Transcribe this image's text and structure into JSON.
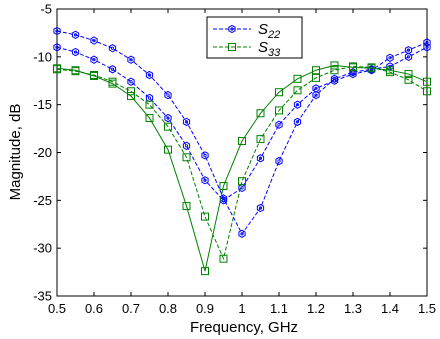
{
  "chart_data": {
    "type": "line",
    "xlabel": "Frequency, GHz",
    "ylabel": "Magnitude, dB",
    "xlim": [
      0.5,
      1.5
    ],
    "ylim": [
      -35,
      -5
    ],
    "xticks": [
      0.5,
      0.6,
      0.7,
      0.8,
      0.9,
      1.0,
      1.1,
      1.2,
      1.3,
      1.4,
      1.5
    ],
    "xtick_labels": [
      "0.5",
      "0.6",
      "0.7",
      "0.8",
      "0.9",
      "1",
      "1.1",
      "1.2",
      "1.3",
      "1.4",
      "1.5"
    ],
    "yticks": [
      -35,
      -30,
      -25,
      -20,
      -15,
      -10,
      -5
    ],
    "ytick_labels": [
      "-35",
      "-30",
      "-25",
      "-20",
      "-15",
      "-10",
      "-5"
    ],
    "grid": false,
    "legend_position": "top-center",
    "series": [
      {
        "name": "S22",
        "sub": "22",
        "color": "#0000ff",
        "dash": true,
        "marker": "hexagon",
        "x": [
          0.5,
          0.55,
          0.6,
          0.65,
          0.7,
          0.75,
          0.8,
          0.85,
          0.9,
          0.95,
          1.0,
          1.05,
          1.1,
          1.15,
          1.2,
          1.25,
          1.3,
          1.35,
          1.4,
          1.45,
          1.5
        ],
        "y": [
          -7.3,
          -7.7,
          -8.3,
          -9.1,
          -10.3,
          -11.9,
          -14.0,
          -16.8,
          -20.3,
          -24.8,
          -28.5,
          -25.8,
          -20.9,
          -16.8,
          -14.0,
          -12.3,
          -11.6,
          -11.3,
          -11.0,
          -10.0,
          -9.0
        ]
      },
      {
        "name": "S22",
        "sub": "22",
        "color": "#0000ff",
        "dash": true,
        "marker": "hexagon",
        "x": [
          0.5,
          0.55,
          0.6,
          0.65,
          0.7,
          0.75,
          0.8,
          0.85,
          0.9,
          0.95,
          1.0,
          1.05,
          1.1,
          1.15,
          1.2,
          1.25,
          1.3,
          1.35,
          1.4,
          1.45,
          1.5
        ],
        "y": [
          -9.0,
          -9.5,
          -10.3,
          -11.3,
          -12.6,
          -14.3,
          -16.4,
          -19.3,
          -22.9,
          -25.0,
          -23.7,
          -20.6,
          -17.1,
          -15.0,
          -13.3,
          -12.5,
          -11.8,
          -11.4,
          -10.1,
          -9.3,
          -8.5
        ]
      },
      {
        "name": "S33",
        "sub": "33",
        "color": "#008000",
        "dash": true,
        "marker": "square",
        "x": [
          0.5,
          0.55,
          0.6,
          0.65,
          0.7,
          0.75,
          0.8,
          0.85,
          0.9,
          0.95,
          1.0,
          1.05,
          1.1,
          1.15,
          1.2,
          1.25,
          1.3,
          1.35,
          1.4,
          1.45,
          1.5
        ],
        "y": [
          -11.3,
          -11.5,
          -11.9,
          -12.6,
          -13.6,
          -15.0,
          -17.3,
          -20.5,
          -26.7,
          -31.1,
          -23.0,
          -18.6,
          -15.6,
          -13.5,
          -12.2,
          -11.4,
          -11.0,
          -11.1,
          -11.6,
          -12.4,
          -13.6
        ]
      },
      {
        "name": "S33",
        "sub": "33",
        "color": "#008000",
        "dash": false,
        "marker": "square",
        "x": [
          0.5,
          0.55,
          0.6,
          0.65,
          0.7,
          0.75,
          0.8,
          0.85,
          0.9,
          0.95,
          1.0,
          1.05,
          1.1,
          1.15,
          1.2,
          1.25,
          1.3,
          1.35,
          1.4,
          1.45,
          1.5
        ],
        "y": [
          -11.2,
          -11.4,
          -12.0,
          -12.8,
          -14.1,
          -16.4,
          -19.7,
          -25.6,
          -32.4,
          -23.5,
          -18.8,
          -15.9,
          -13.7,
          -12.3,
          -11.4,
          -10.9,
          -11.1,
          -11.2,
          -11.4,
          -11.8,
          -12.6
        ]
      }
    ],
    "legend": [
      {
        "label": "S",
        "sub": "22",
        "color": "#0000ff",
        "dash": true,
        "marker": "hexagon"
      },
      {
        "label": "S",
        "sub": "33",
        "color": "#008000",
        "dash": true,
        "marker": "square"
      }
    ]
  }
}
